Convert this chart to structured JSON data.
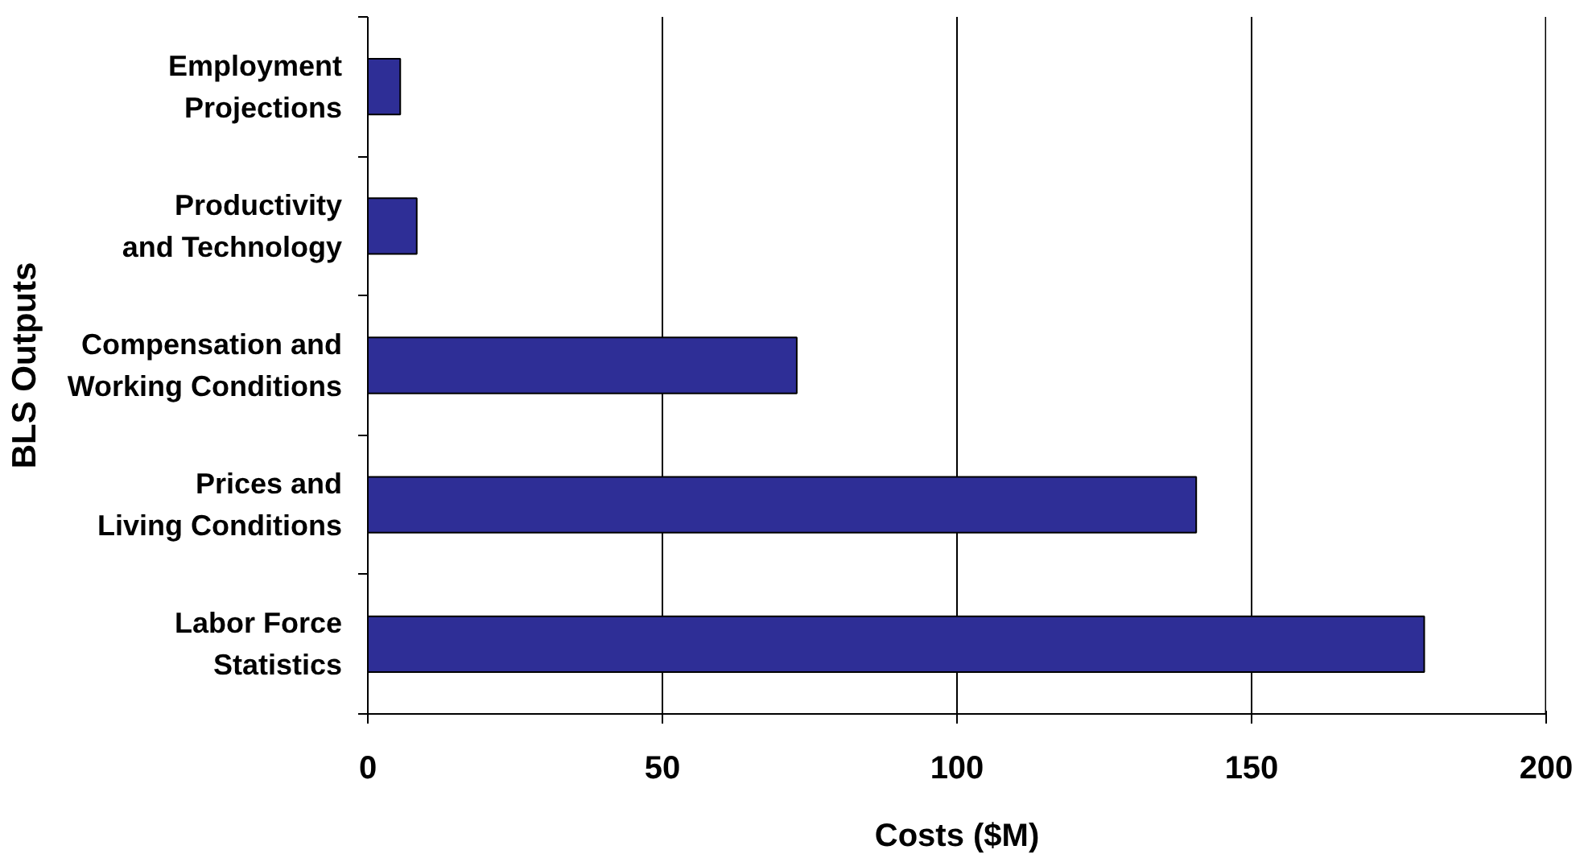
{
  "chart_data": {
    "type": "bar",
    "orientation": "horizontal",
    "categories": [
      "Employment Projections",
      "Productivity and Technology",
      "Compensation and Working Conditions",
      "Prices and Living Conditions",
      "Labor Force Statistics"
    ],
    "values": [
      5.5,
      8.3,
      72.8,
      140.6,
      179.3
    ],
    "color": "#2e2e96",
    "xlabel": "Costs ($M)",
    "ylabel": "BLS Outputs",
    "xlim": [
      0,
      200
    ],
    "xticks": [
      0,
      50,
      100,
      150,
      200
    ],
    "grid": "x"
  }
}
